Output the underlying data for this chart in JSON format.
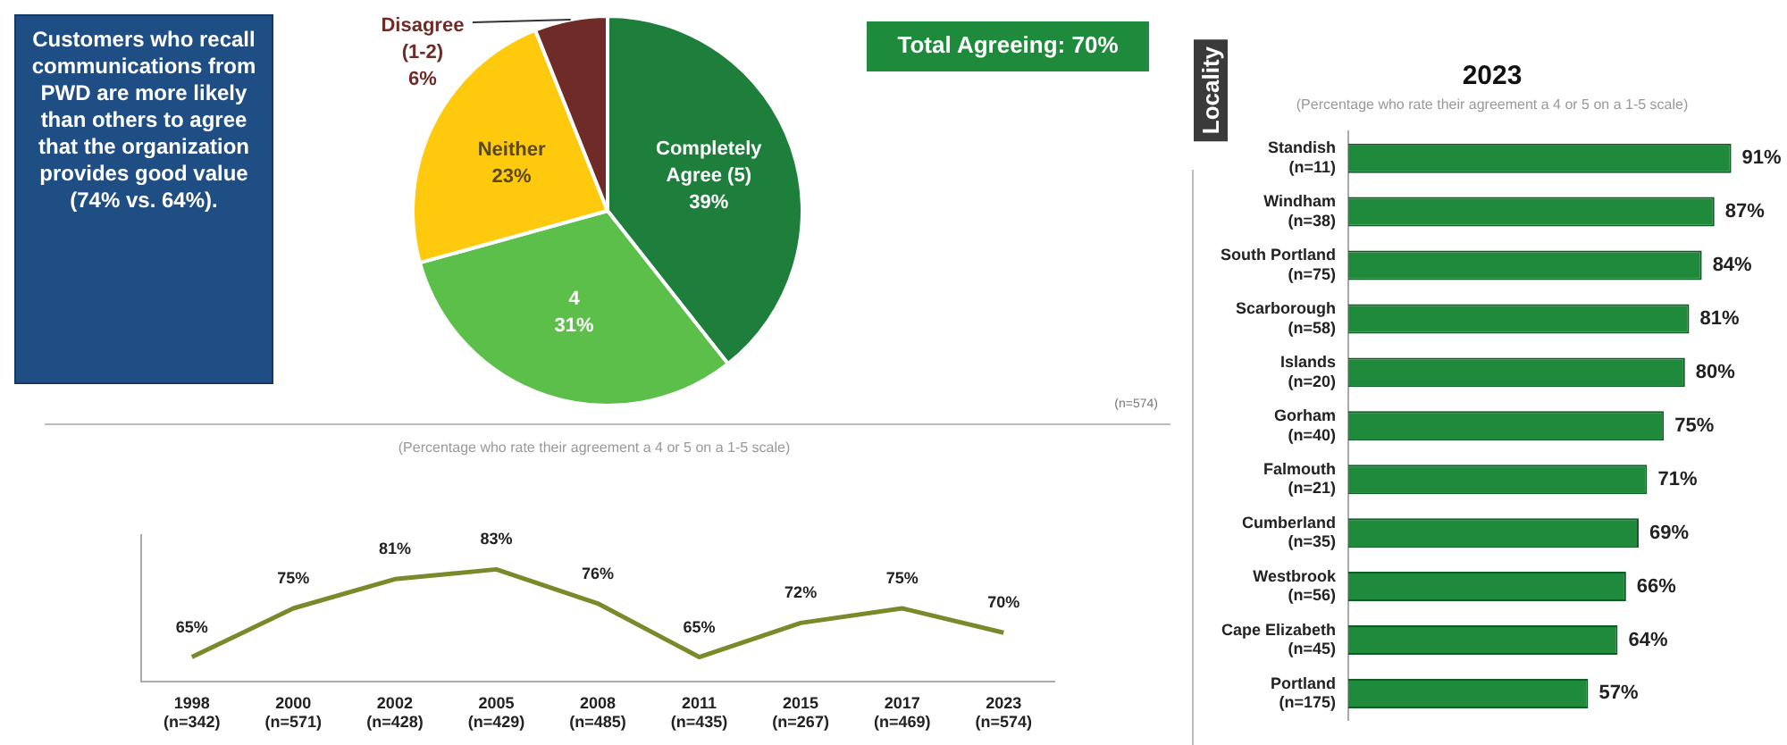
{
  "chart_data": [
    {
      "type": "other",
      "annotations": [
        "Customers who recall communications from PWD are more likely than others to agree that the organization provides good value (74% vs. 64%)."
      ]
    },
    {
      "type": "pie",
      "categories": [
        "Completely Agree (5)",
        "4",
        "Neither",
        "Disagree (1-2)"
      ],
      "values": [
        39,
        31,
        23,
        6
      ],
      "colors": [
        "#1e7e3c",
        "#5cbf4a",
        "#ffc90e",
        "#6e2b27"
      ],
      "value_labels": [
        "39%",
        "31%",
        "23%",
        "6%"
      ],
      "annotations": [
        "Total Agreeing: 70%",
        "(n=574)"
      ],
      "legend": false
    },
    {
      "type": "line",
      "subtitle": "(Percentage who rate their agreement a 4 or 5 on a 1-5 scale)",
      "categories": [
        "1998\n(n=342)",
        "2000\n(n=571)",
        "2002\n(n=428)",
        "2005\n(n=429)",
        "2008\n(n=485)",
        "2011\n(n=435)",
        "2015\n(n=267)",
        "2017\n(n=469)",
        "2023\n(n=574)"
      ],
      "series": [
        {
          "color": "#7a8a2a",
          "values": [
            65,
            75,
            81,
            83,
            76,
            65,
            72,
            75,
            70
          ],
          "value_labels": [
            "65%",
            "75%",
            "81%",
            "83%",
            "76%",
            "65%",
            "72%",
            "75%",
            "70%"
          ]
        }
      ],
      "marker": "none",
      "grid": false,
      "legend": false,
      "tick_labels": "x"
    },
    {
      "type": "bar",
      "orientation": "horizontal",
      "title": "2023",
      "subtitle": "(Percentage who rate their agreement a 4 or 5 on a 1-5 scale)",
      "ylabel": "Locality",
      "categories": [
        "Standish\n(n=11)",
        "Windham\n(n=38)",
        "South Portland\n(n=75)",
        "Scarborough\n(n=58)",
        "Islands\n(n=20)",
        "Gorham\n(n=40)",
        "Falmouth\n(n=21)",
        "Cumberland\n(n=35)",
        "Westbrook\n(n=56)",
        "Cape Elizabeth\n(n=45)",
        "Portland\n(n=175)"
      ],
      "values": [
        91,
        87,
        84,
        81,
        80,
        75,
        71,
        69,
        66,
        64,
        57
      ],
      "color": "#1f8a3b",
      "value_labels": [
        "91%",
        "87%",
        "84%",
        "81%",
        "80%",
        "75%",
        "71%",
        "69%",
        "66%",
        "64%",
        "57%"
      ],
      "grid": false,
      "legend": false,
      "tick_labels": "y"
    }
  ]
}
